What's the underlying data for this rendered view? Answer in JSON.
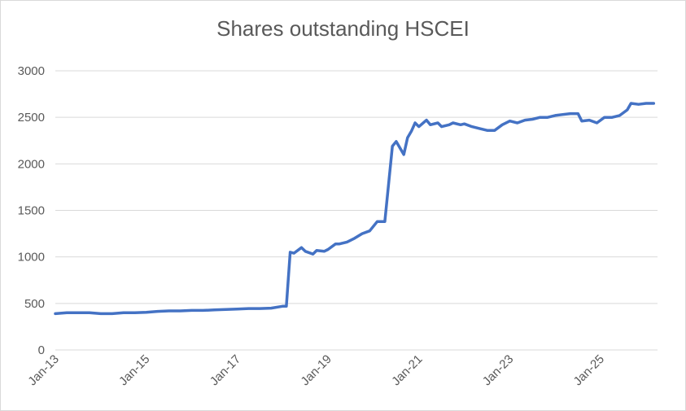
{
  "chart_data": {
    "type": "line",
    "title": "Shares outstanding HSCEI",
    "xlabel": "",
    "ylabel": "",
    "ylim": [
      0,
      3000
    ],
    "yticks": [
      0,
      500,
      1000,
      1500,
      2000,
      2500,
      3000
    ],
    "xlim": [
      "2013-01",
      "2026-04"
    ],
    "xticks": [
      "Jan-13",
      "Jan-15",
      "Jan-17",
      "Jan-19",
      "Jan-21",
      "Jan-23",
      "Jan-25"
    ],
    "grid": true,
    "legend": "none",
    "color": "#4472c4",
    "series": [
      {
        "x": [
          "2013-01",
          "2013-04",
          "2013-07",
          "2013-10",
          "2014-01",
          "2014-04",
          "2014-07",
          "2014-10",
          "2015-01",
          "2015-04",
          "2015-07",
          "2015-10",
          "2016-01",
          "2016-04",
          "2016-07",
          "2016-10",
          "2017-01",
          "2017-04",
          "2017-07",
          "2017-10",
          "2018-01",
          "2018-02",
          "2018-03",
          "2018-04",
          "2018-06",
          "2018-07",
          "2018-09",
          "2018-10",
          "2018-12",
          "2019-01",
          "2019-03",
          "2019-04",
          "2019-06",
          "2019-08",
          "2019-10",
          "2019-12",
          "2020-02",
          "2020-04",
          "2020-06",
          "2020-07",
          "2020-09",
          "2020-10",
          "2020-11",
          "2020-12",
          "2021-01",
          "2021-03",
          "2021-04",
          "2021-06",
          "2021-07",
          "2021-09",
          "2021-10",
          "2021-12",
          "2022-01",
          "2022-03",
          "2022-05",
          "2022-07",
          "2022-09",
          "2022-11",
          "2023-01",
          "2023-03",
          "2023-05",
          "2023-07",
          "2023-09",
          "2023-11",
          "2024-01",
          "2024-03",
          "2024-05",
          "2024-07",
          "2024-08",
          "2024-10",
          "2024-12",
          "2025-02",
          "2025-04",
          "2025-06",
          "2025-08",
          "2025-09",
          "2025-11",
          "2026-01",
          "2026-03"
        ],
        "values": [
          390,
          400,
          400,
          400,
          390,
          390,
          400,
          400,
          405,
          415,
          420,
          420,
          425,
          425,
          430,
          435,
          440,
          445,
          445,
          450,
          470,
          470,
          1050,
          1040,
          1100,
          1060,
          1030,
          1070,
          1060,
          1080,
          1140,
          1140,
          1160,
          1200,
          1250,
          1280,
          1380,
          1380,
          2190,
          2240,
          2100,
          2280,
          2350,
          2440,
          2400,
          2470,
          2420,
          2440,
          2400,
          2420,
          2440,
          2420,
          2430,
          2400,
          2380,
          2360,
          2360,
          2420,
          2460,
          2440,
          2470,
          2480,
          2500,
          2500,
          2520,
          2530,
          2540,
          2540,
          2460,
          2470,
          2440,
          2500,
          2500,
          2520,
          2580,
          2650,
          2640,
          2650,
          2650
        ]
      }
    ]
  }
}
